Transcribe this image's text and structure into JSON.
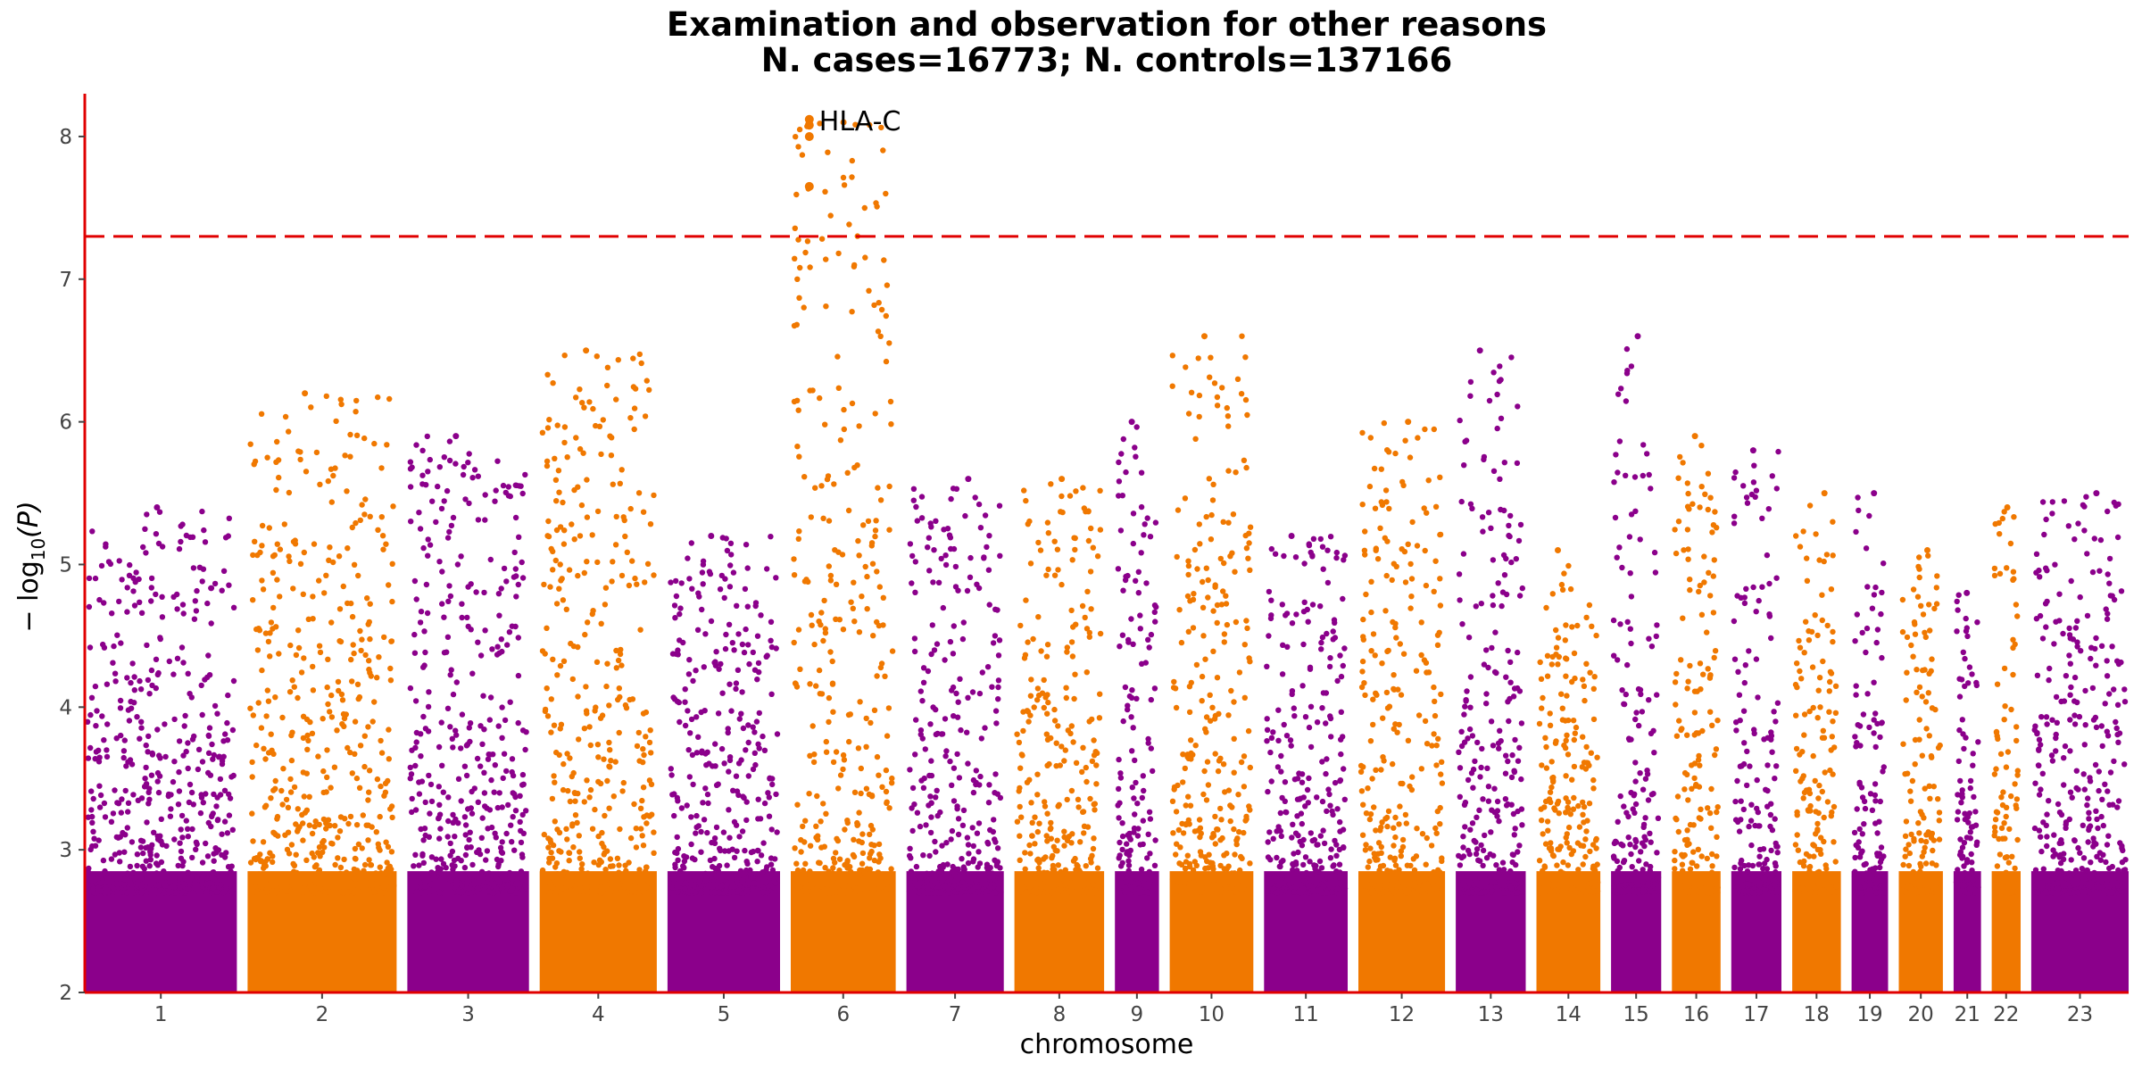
{
  "chart_data": {
    "type": "scatter",
    "title_line1": "Examination and observation for other reasons",
    "title_line2": "N. cases=16773; N. controls=137166",
    "xlabel": "chromosome",
    "ylabel_main": "− log",
    "ylabel_sub": "10",
    "ylabel_arg": "(P)",
    "ylim": [
      2,
      8.3
    ],
    "y_ticks": [
      2,
      3,
      4,
      5,
      6,
      7,
      8
    ],
    "threshold": 7.3,
    "colors": {
      "odd": "#8b008b",
      "even": "#f07800",
      "axis": "#e00000",
      "threshold": "#e00000"
    },
    "chromosomes": [
      {
        "label": "1",
        "max": 5.4
      },
      {
        "label": "2",
        "max": 6.2
      },
      {
        "label": "3",
        "max": 5.9
      },
      {
        "label": "4",
        "max": 6.5
      },
      {
        "label": "5",
        "max": 5.2
      },
      {
        "label": "6",
        "max": 8.1
      },
      {
        "label": "7",
        "max": 5.6
      },
      {
        "label": "8",
        "max": 5.6
      },
      {
        "label": "9",
        "max": 6.0
      },
      {
        "label": "10",
        "max": 6.6
      },
      {
        "label": "11",
        "max": 5.2
      },
      {
        "label": "12",
        "max": 6.0
      },
      {
        "label": "13",
        "max": 6.5
      },
      {
        "label": "14",
        "max": 5.1
      },
      {
        "label": "15",
        "max": 6.6
      },
      {
        "label": "16",
        "max": 5.9
      },
      {
        "label": "17",
        "max": 5.8
      },
      {
        "label": "18",
        "max": 5.5
      },
      {
        "label": "19",
        "max": 5.5
      },
      {
        "label": "20",
        "max": 5.1
      },
      {
        "label": "21",
        "max": 4.8
      },
      {
        "label": "22",
        "max": 5.4
      },
      {
        "label": "23",
        "max": 5.5
      }
    ],
    "top_hits": [
      {
        "chromosome": "6",
        "values": [
          8.12,
          8.08,
          8.0,
          7.65
        ]
      }
    ],
    "annotations": [
      {
        "text": "HLA-C",
        "chromosome": "6",
        "y": 8.1
      }
    ]
  }
}
